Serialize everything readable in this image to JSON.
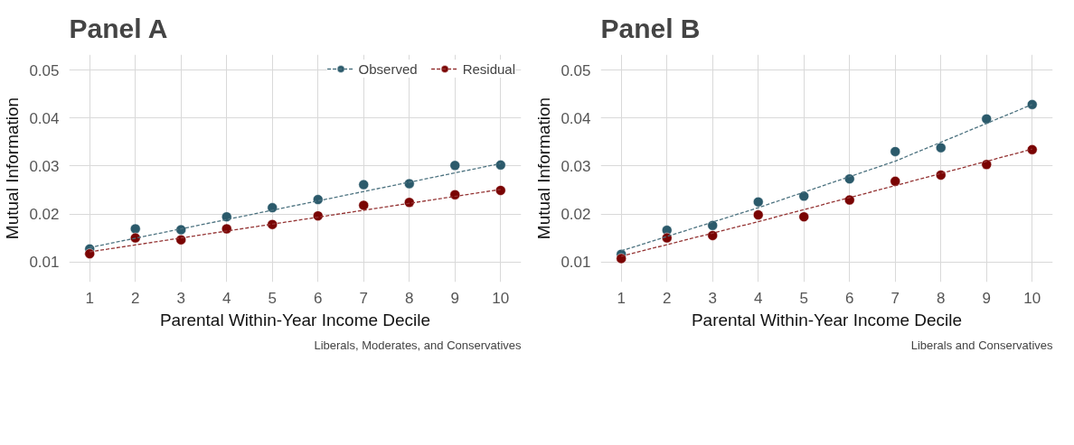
{
  "chart_data": [
    {
      "type": "scatter",
      "title": "Panel A",
      "xlabel": "Parental Within-Year Income Decile",
      "ylabel": "Mutual Information",
      "annotations": [
        "Liberals, Moderates, and Conservatives"
      ],
      "x": [
        1,
        2,
        3,
        4,
        5,
        6,
        7,
        8,
        9,
        10
      ],
      "series": [
        {
          "name": "Observed",
          "color": "#2b5a6b",
          "values": [
            0.0127,
            0.0169,
            0.0167,
            0.0194,
            0.0213,
            0.023,
            0.0261,
            0.0263,
            0.0301,
            0.0302
          ]
        },
        {
          "name": "Residual",
          "color": "#7a0403",
          "values": [
            0.0117,
            0.015,
            0.0146,
            0.0169,
            0.0178,
            0.0196,
            0.0218,
            0.0224,
            0.024,
            0.0249
          ]
        },
        {
          "type": "line",
          "line_style": "dashed",
          "marker": "none",
          "color": "#4d7380",
          "x": [
            1,
            10
          ],
          "values": [
            0.013,
            0.0305
          ]
        },
        {
          "type": "line",
          "line_style": "dashed",
          "marker": "none",
          "color": "#943333",
          "x": [
            1,
            10
          ],
          "values": [
            0.0121,
            0.0251
          ]
        }
      ],
      "marker": "circle",
      "xlim": [
        0.55,
        10.45
      ],
      "ylim": [
        0.0058,
        0.0532
      ],
      "xticks": [
        1,
        2,
        3,
        4,
        5,
        6,
        7,
        8,
        9,
        10
      ],
      "yticks": [
        0.01,
        0.02,
        0.03,
        0.04,
        0.05
      ],
      "grid": true,
      "legend": "top"
    },
    {
      "type": "scatter",
      "title": "Panel B",
      "xlabel": "Parental Within-Year Income Decile",
      "ylabel": "Mutual Information",
      "annotations": [
        "Liberals and Conservatives"
      ],
      "x": [
        1,
        2,
        3,
        4,
        5,
        6,
        7,
        8,
        9,
        10
      ],
      "series": [
        {
          "color": "#2b5a6b",
          "values": [
            0.0116,
            0.0166,
            0.0176,
            0.0225,
            0.0237,
            0.0273,
            0.033,
            0.0338,
            0.0398,
            0.0428
          ]
        },
        {
          "color": "#7a0403",
          "values": [
            0.0107,
            0.015,
            0.0155,
            0.0198,
            0.0194,
            0.0229,
            0.0268,
            0.0281,
            0.0303,
            0.0334
          ]
        },
        {
          "type": "line",
          "line_style": "dashed",
          "marker": "none",
          "color": "#4d7380",
          "x": [
            1,
            4,
            7,
            10
          ],
          "values": [
            0.0123,
            0.0213,
            0.031,
            0.0428
          ]
        },
        {
          "type": "line",
          "line_style": "dashed",
          "marker": "none",
          "color": "#943333",
          "x": [
            1,
            4,
            7,
            10
          ],
          "values": [
            0.0112,
            0.0184,
            0.0259,
            0.0335
          ]
        }
      ],
      "marker": "circle",
      "xlim": [
        0.55,
        10.45
      ],
      "ylim": [
        0.0058,
        0.0532
      ],
      "xticks": [
        1,
        2,
        3,
        4,
        5,
        6,
        7,
        8,
        9,
        10
      ],
      "yticks": [
        0.01,
        0.02,
        0.03,
        0.04,
        0.05
      ],
      "grid": true
    }
  ]
}
